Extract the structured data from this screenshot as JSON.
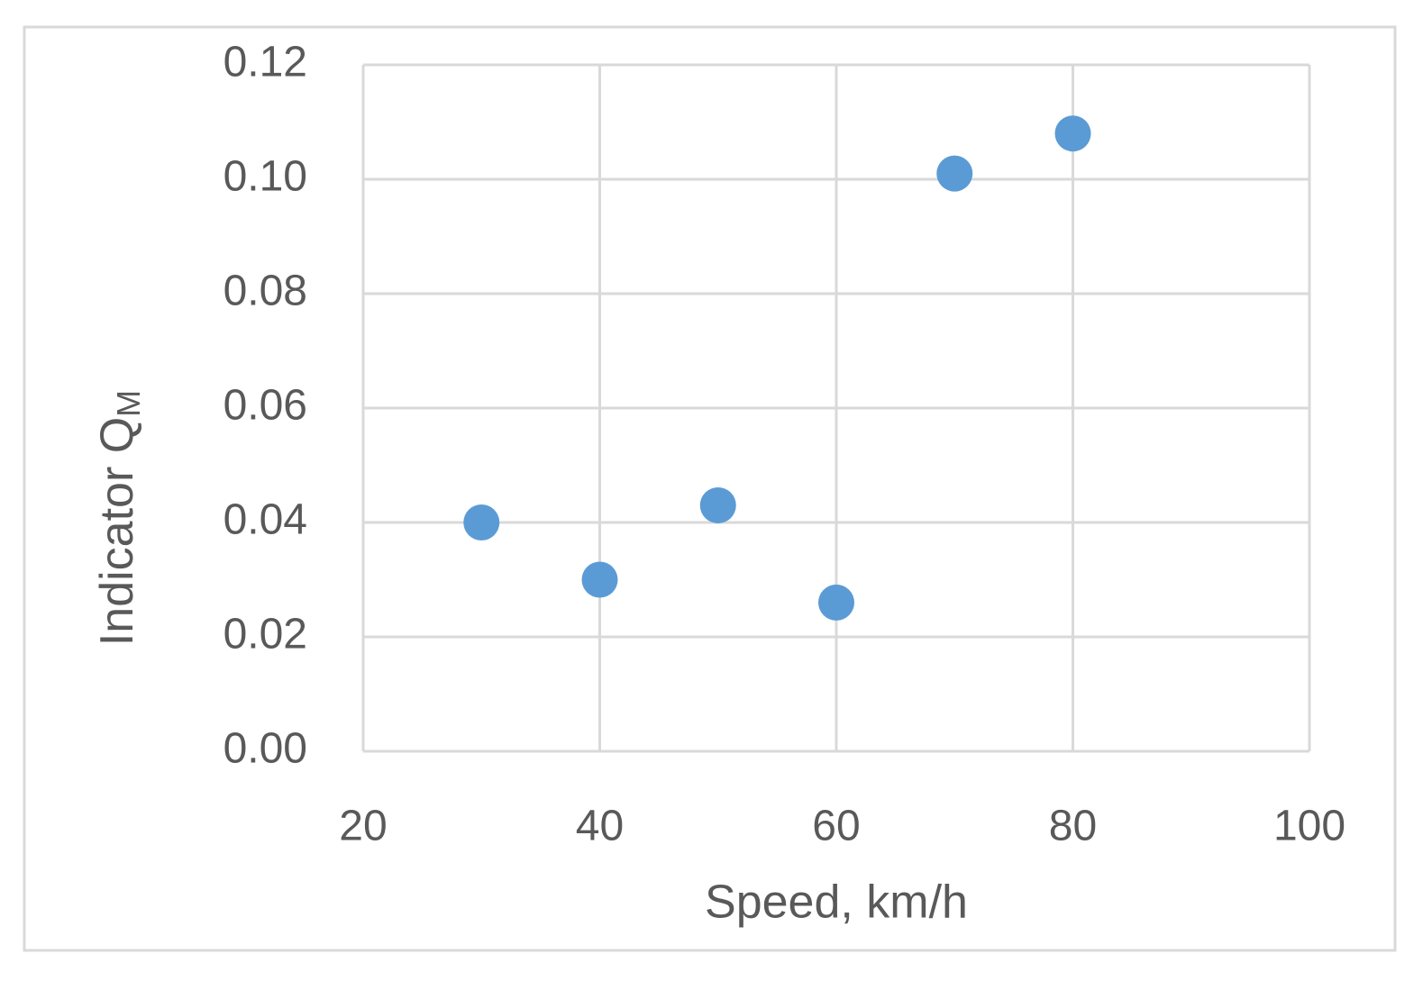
{
  "chart_data": {
    "type": "scatter",
    "xlabel": "Speed, km/h",
    "ylabel": {
      "text": "Indicator Q",
      "subscript": "M"
    },
    "x": [
      30,
      40,
      50,
      60,
      70,
      80
    ],
    "values": [
      0.04,
      0.03,
      0.043,
      0.026,
      0.101,
      0.108
    ],
    "color": "#5b9bd5",
    "xlim": [
      20,
      100
    ],
    "xticks": [
      20,
      40,
      60,
      80,
      100
    ],
    "ylim": [
      0,
      0.12
    ],
    "yticks": [
      {
        "value": 0,
        "label": "0.00"
      },
      0.02,
      0.04,
      0.06,
      0.08,
      {
        "value": 0.1,
        "label": "0.10"
      },
      0.12
    ],
    "grid": true
  }
}
